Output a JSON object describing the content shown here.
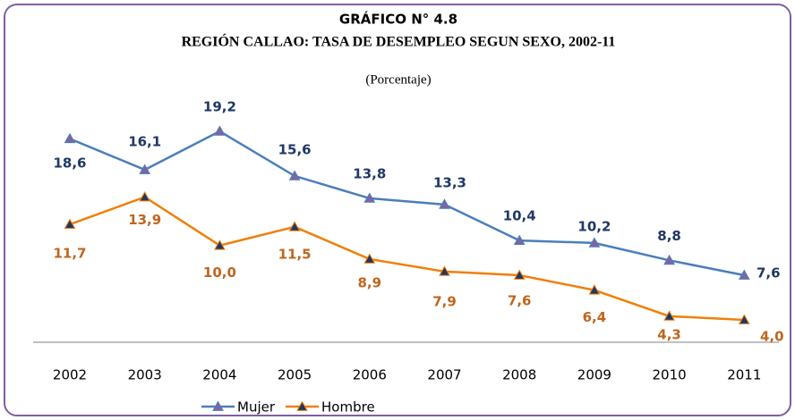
{
  "chart_data": {
    "type": "line",
    "title": "GRÁFICO N° 4.8",
    "subtitle": "REGIÓN CALLAO: TASA DE DESEMPLEO SEGUN SEXO, 2002-11",
    "unit_note": "(Porcentaje)",
    "categories": [
      "2002",
      "2003",
      "2004",
      "2005",
      "2006",
      "2007",
      "2008",
      "2009",
      "2010",
      "2011"
    ],
    "series": [
      {
        "name": "Mujer",
        "color": "#4a7ebb",
        "marker_color": "#8064a2",
        "label_color": "#1f3864",
        "values": [
          18.6,
          16.1,
          19.2,
          15.6,
          13.8,
          13.3,
          10.4,
          10.2,
          8.8,
          7.6
        ],
        "value_labels": [
          "18,6",
          "16,1",
          "19,2",
          "15,6",
          "13,8",
          "13,3",
          "10,4",
          "10,2",
          "8,8",
          "7,6"
        ]
      },
      {
        "name": "Hombre",
        "color": "#f07f09",
        "marker_color": "#1f3864",
        "label_color": "#c0651b",
        "values": [
          11.7,
          13.9,
          10.0,
          11.5,
          8.9,
          7.9,
          7.6,
          6.4,
          4.3,
          4.0
        ],
        "value_labels": [
          "11,7",
          "13,9",
          "10,0",
          "11,5",
          "8,9",
          "7,9",
          "7,6",
          "6,4",
          "4,3",
          "4,0"
        ]
      }
    ],
    "ylim": [
      2.2,
      22
    ],
    "legend": "bottom"
  }
}
